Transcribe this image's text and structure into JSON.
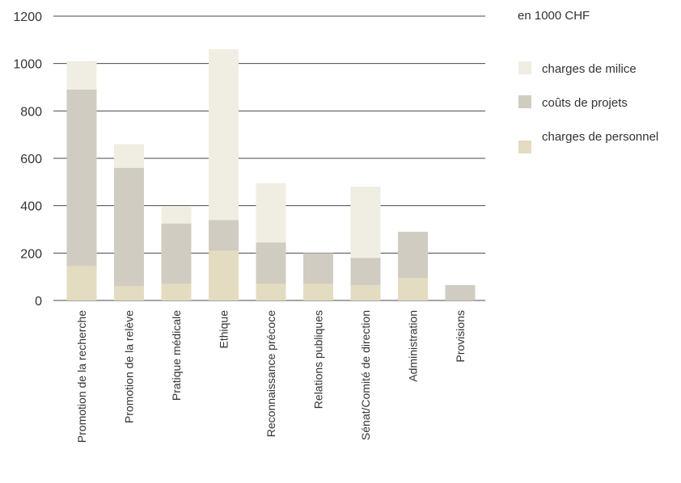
{
  "chart_data": {
    "type": "bar",
    "stacked": true,
    "unit_label": "en 1000 CHF",
    "categories": [
      "Promotion de la recherche",
      "Promotion de la relève",
      "Pratique médicale",
      "Ethique",
      "Reconnaissance précoce",
      "Relations publiques",
      "Sénat/Comité de direction",
      "Administration",
      "Provisions"
    ],
    "series": [
      {
        "name": "charges de personnel",
        "color": "#e3dcc0",
        "values": [
          145,
          60,
          70,
          210,
          70,
          70,
          65,
          95,
          0
        ]
      },
      {
        "name": "coûts de projets",
        "color": "#d1ccc1",
        "values": [
          745,
          500,
          255,
          130,
          175,
          130,
          115,
          195,
          65
        ]
      },
      {
        "name": "charges de milice",
        "color": "#f0ede2",
        "values": [
          120,
          100,
          70,
          720,
          250,
          0,
          300,
          0,
          0
        ]
      }
    ],
    "legend_order": [
      "charges de milice",
      "coûts de projets",
      "charges de personnel"
    ],
    "yticks": [
      0,
      200,
      400,
      600,
      800,
      1000,
      1200
    ],
    "ylim": [
      0,
      1200
    ],
    "grid": true,
    "legend_position": "right"
  }
}
